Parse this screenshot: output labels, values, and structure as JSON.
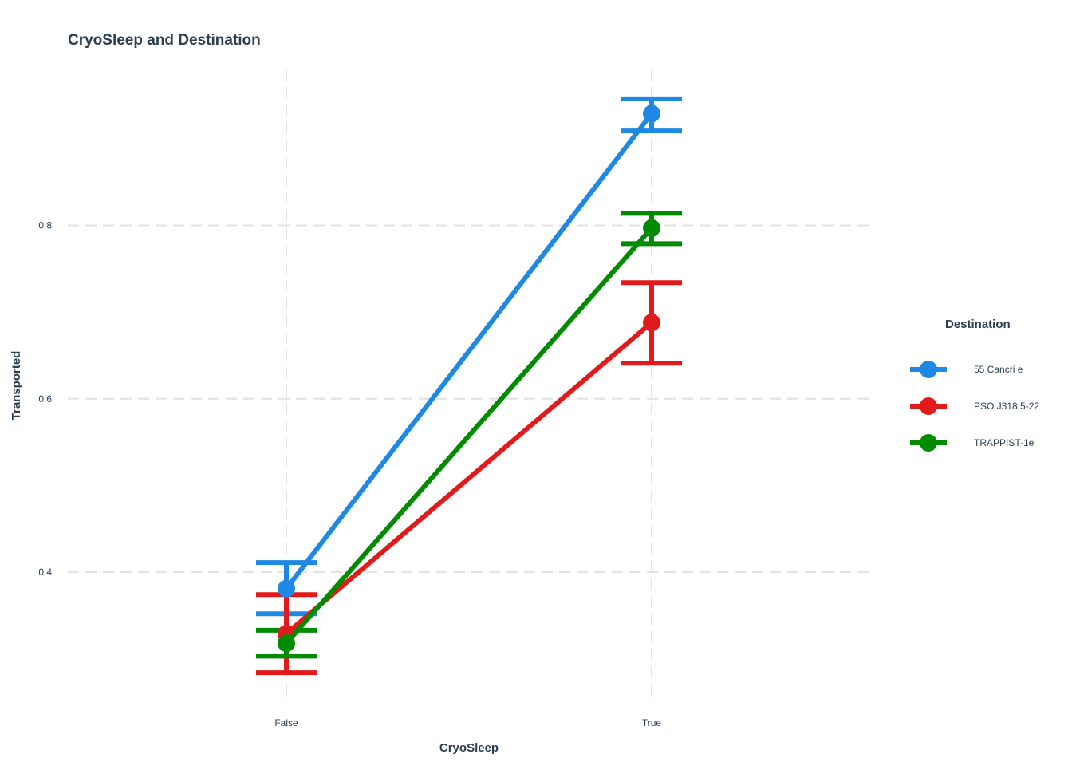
{
  "chart_data": {
    "type": "line",
    "title": "CryoSleep and Destination",
    "xlabel": "CryoSleep",
    "ylabel": "Transported",
    "categories": [
      "False",
      "True"
    ],
    "ylim": [
      0.25,
      0.98
    ],
    "yticks": [
      0.4,
      0.6,
      0.8
    ],
    "ytick_labels": [
      "0.4",
      "0.6",
      "0.8"
    ],
    "grid": true,
    "legend_title": "Destination",
    "legend_position": "right",
    "series": [
      {
        "name": "55 Cancri e",
        "color": "#1e88e5",
        "values": [
          0.381,
          0.929
        ],
        "lower": [
          0.352,
          0.909
        ],
        "upper": [
          0.411,
          0.946
        ]
      },
      {
        "name": "PSO J318.5-22",
        "color": "#e31a1c",
        "values": [
          0.329,
          0.688
        ],
        "lower": [
          0.284,
          0.641
        ],
        "upper": [
          0.374,
          0.734
        ]
      },
      {
        "name": "TRAPPIST-1e",
        "color": "#008b00",
        "values": [
          0.318,
          0.797
        ],
        "lower": [
          0.303,
          0.779
        ],
        "upper": [
          0.333,
          0.814
        ]
      }
    ]
  }
}
